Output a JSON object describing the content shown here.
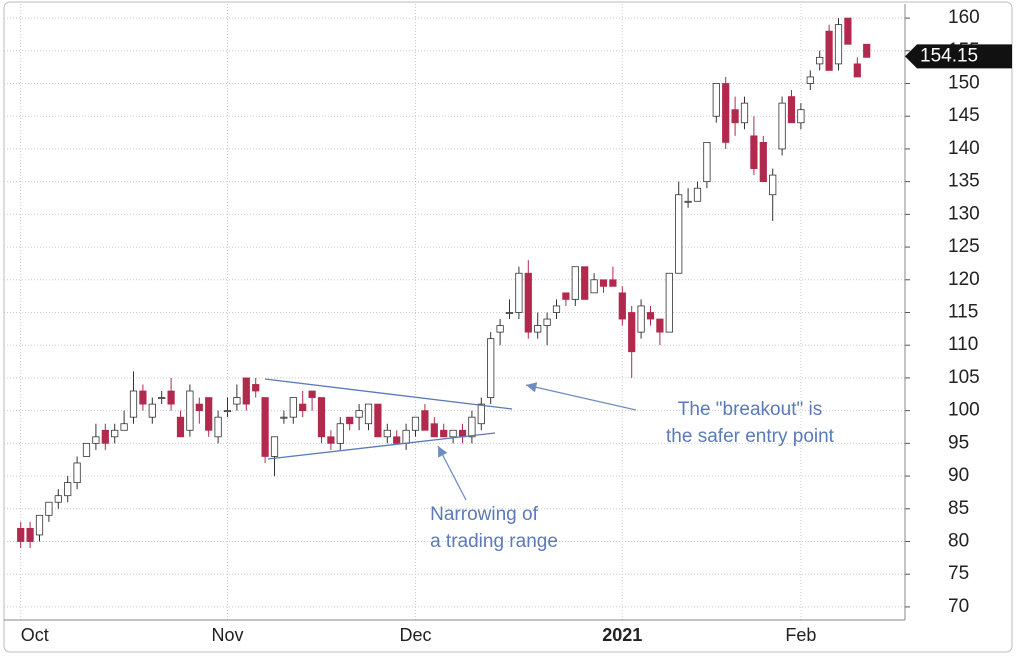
{
  "chart_data": {
    "type": "candlestick",
    "categories": [
      "Oct",
      null,
      null,
      null,
      null,
      null,
      null,
      null,
      null,
      null,
      null,
      null,
      null,
      null,
      null,
      null,
      null,
      null,
      null,
      null,
      null,
      null,
      "Nov",
      null,
      null,
      null,
      null,
      null,
      null,
      null,
      null,
      null,
      null,
      null,
      null,
      null,
      null,
      null,
      null,
      null,
      null,
      null,
      "Dec",
      null,
      null,
      null,
      null,
      null,
      null,
      null,
      null,
      null,
      null,
      null,
      null,
      null,
      null,
      null,
      null,
      null,
      null,
      null,
      null,
      null,
      "2021",
      null,
      null,
      null,
      null,
      null,
      null,
      null,
      null,
      null,
      null,
      null,
      null,
      null,
      null,
      null,
      null,
      null,
      null,
      "Feb",
      null,
      null,
      null,
      null,
      null,
      null,
      null
    ],
    "open": [
      82,
      82,
      81,
      84,
      86,
      87,
      89,
      93,
      95,
      97,
      96,
      97,
      99,
      103,
      99,
      102,
      103,
      99,
      97,
      101,
      102,
      96,
      100,
      101,
      105,
      104,
      102,
      93,
      99,
      99,
      101,
      103,
      102,
      96,
      95,
      99,
      99,
      98,
      101,
      96,
      96,
      95,
      97,
      100,
      98,
      97,
      96,
      97,
      96,
      98,
      102,
      112,
      115,
      115,
      121,
      112,
      113,
      115,
      118,
      117,
      122,
      118,
      120,
      120,
      118,
      115,
      112,
      115,
      114,
      112,
      121,
      132,
      132,
      135,
      145,
      150,
      146,
      144,
      142,
      141,
      133,
      140,
      148,
      144,
      150,
      153,
      158,
      153,
      160,
      153,
      156
    ],
    "high": [
      83,
      83,
      84,
      86,
      88,
      90,
      93,
      95,
      98,
      98,
      98,
      100,
      106,
      104,
      102,
      103,
      105,
      100,
      104,
      102,
      102,
      100,
      102,
      104,
      105,
      105,
      102,
      96,
      100,
      102,
      103,
      103,
      102,
      97,
      99,
      99,
      101,
      101,
      101,
      98,
      97,
      98,
      99,
      101,
      99,
      98,
      97,
      98,
      100,
      102,
      112,
      114,
      117,
      122,
      123,
      115,
      115,
      117,
      118,
      122,
      122,
      121,
      120,
      122,
      119,
      116,
      117,
      116,
      114,
      121,
      135,
      134,
      135,
      141,
      150,
      151,
      148,
      148,
      145,
      142,
      137,
      148,
      149,
      147,
      152,
      155,
      159,
      160,
      160,
      154,
      156
    ],
    "low": [
      79,
      79,
      80,
      83,
      85,
      86,
      88,
      93,
      94,
      94,
      95,
      97,
      98,
      100,
      98,
      101,
      100,
      96,
      96,
      98,
      96,
      95,
      99,
      100,
      100,
      102,
      92,
      90,
      98,
      98,
      99,
      100,
      95,
      94,
      94,
      97,
      97,
      97,
      96,
      95,
      95,
      94,
      96,
      97,
      96,
      96,
      95,
      95,
      95,
      97,
      101,
      110,
      114,
      114,
      111,
      111,
      110,
      114,
      116,
      116,
      117,
      118,
      118,
      119,
      113,
      105,
      111,
      113,
      110,
      112,
      121,
      131,
      132,
      134,
      144,
      140,
      142,
      143,
      136,
      135,
      129,
      139,
      144,
      143,
      149,
      152,
      152,
      152,
      156,
      151,
      154
    ],
    "close": [
      80,
      80,
      84,
      86,
      87,
      89,
      92,
      95,
      96,
      95,
      97,
      98,
      103,
      101,
      101,
      102,
      101,
      96,
      103,
      100,
      97,
      99,
      100,
      102,
      101,
      103,
      93,
      96,
      99,
      102,
      100,
      102,
      96,
      95,
      98,
      98,
      100,
      101,
      96,
      97,
      95,
      97,
      99,
      97,
      96,
      96,
      97,
      96,
      99,
      101,
      111,
      113,
      115,
      121,
      112,
      113,
      114,
      116,
      117,
      122,
      117,
      120,
      119,
      119,
      114,
      109,
      116,
      114,
      112,
      121,
      133,
      132,
      134,
      141,
      150,
      141,
      144,
      147,
      137,
      135,
      136,
      147,
      144,
      146,
      151,
      154,
      152,
      159,
      156,
      151,
      154
    ],
    "up_color": "#ffffff",
    "down_color": "#b3294e",
    "last_price": 154.15,
    "ylim": [
      68,
      162
    ],
    "yticks": [
      70,
      75,
      80,
      85,
      90,
      95,
      100,
      105,
      110,
      115,
      120,
      125,
      130,
      135,
      140,
      145,
      150,
      155,
      160
    ],
    "grid": true,
    "annotations": [
      {
        "lines": [
          "The \"breakout\" is",
          "the safer entry point"
        ]
      },
      {
        "lines": [
          "Narrowing of",
          "a trading range"
        ]
      }
    ]
  }
}
